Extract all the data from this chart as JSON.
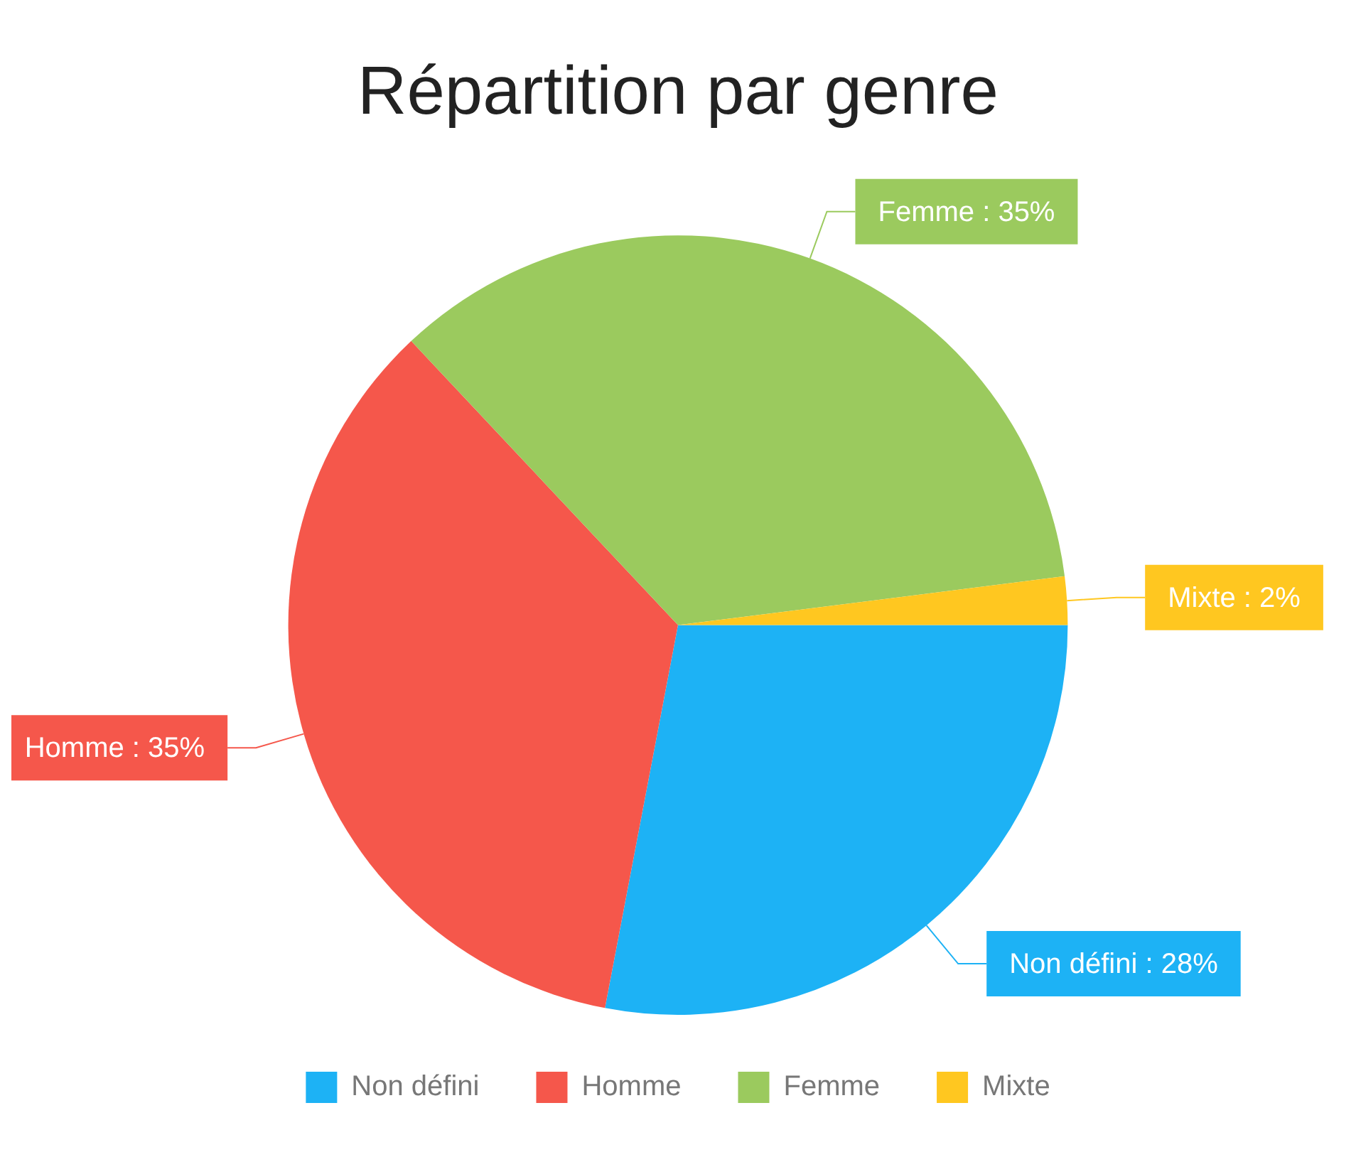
{
  "chart_data": {
    "type": "pie",
    "title": "Répartition par genre",
    "categories": [
      "Non défini",
      "Homme",
      "Femme",
      "Mixte"
    ],
    "values": [
      28,
      35,
      35,
      2
    ],
    "colors": [
      "#1db2f5",
      "#f5574b",
      "#9bca5e",
      "#ffc720"
    ],
    "value_labels": [
      ": 28%",
      ": 35%",
      ": 35%",
      ": 2%"
    ],
    "legend": "bottom"
  }
}
